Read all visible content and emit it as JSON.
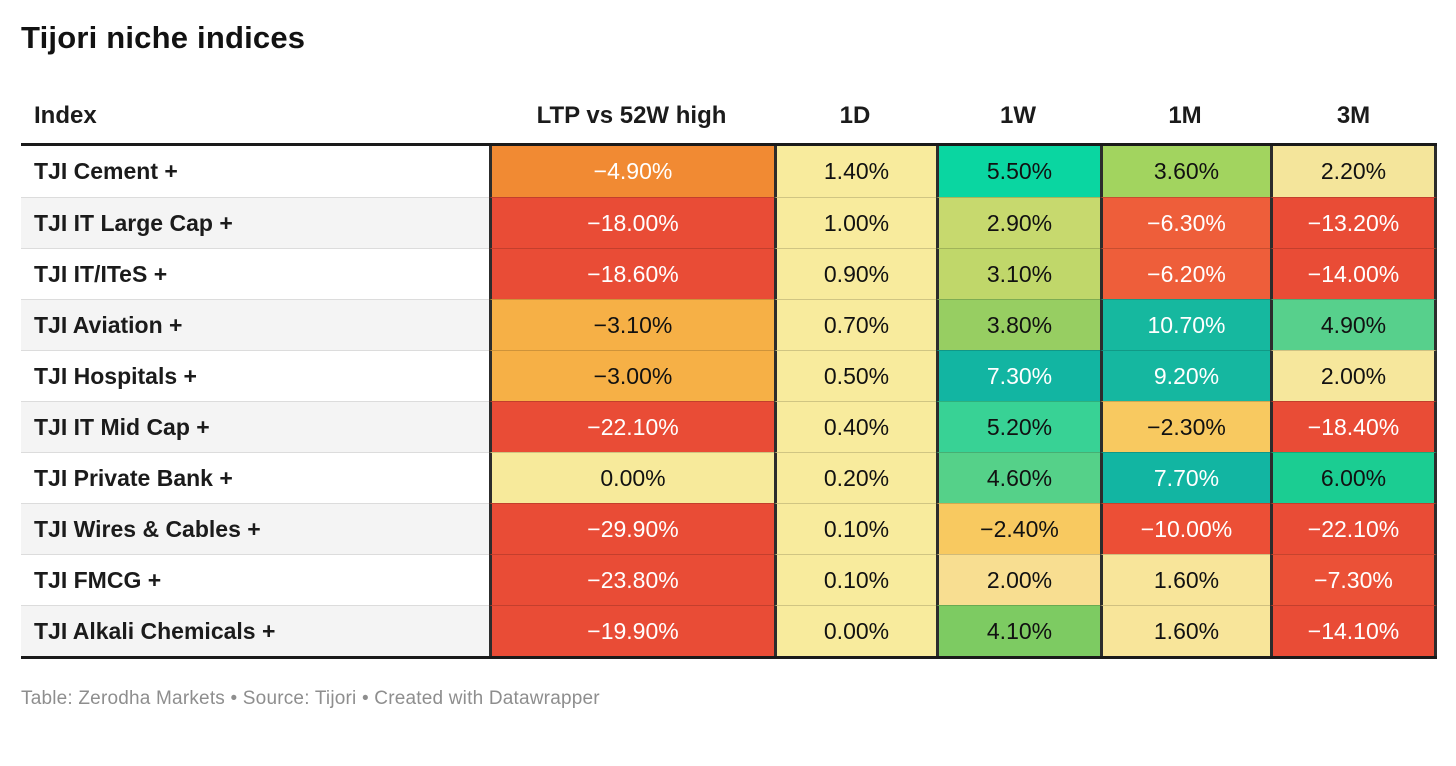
{
  "title": "Tijori niche indices",
  "columns": [
    {
      "key": "index",
      "label": "Index"
    },
    {
      "key": "ltp_vs_52w_high",
      "label": "LTP vs 52W high"
    },
    {
      "key": "1d",
      "label": "1D"
    },
    {
      "key": "1w",
      "label": "1W"
    },
    {
      "key": "1m",
      "label": "1M"
    },
    {
      "key": "3m",
      "label": "3M"
    }
  ],
  "rows": [
    {
      "index": "TJI Cement +",
      "cells": [
        {
          "v": "−4.90%",
          "bg": "#F18A33",
          "fg": "#ffffff"
        },
        {
          "v": "1.40%",
          "bg": "#F8EB9D",
          "fg": "#111111"
        },
        {
          "v": "5.50%",
          "bg": "#0AD6A1",
          "fg": "#111111"
        },
        {
          "v": "3.60%",
          "bg": "#A2D45F",
          "fg": "#111111"
        },
        {
          "v": "2.20%",
          "bg": "#F4E59B",
          "fg": "#111111"
        }
      ]
    },
    {
      "index": "TJI IT Large Cap +",
      "cells": [
        {
          "v": "−18.00%",
          "bg": "#E94C36",
          "fg": "#ffffff"
        },
        {
          "v": "1.00%",
          "bg": "#F8EB9D",
          "fg": "#111111"
        },
        {
          "v": "2.90%",
          "bg": "#C7D96E",
          "fg": "#111111"
        },
        {
          "v": "−6.30%",
          "bg": "#EE5E3A",
          "fg": "#ffffff"
        },
        {
          "v": "−13.20%",
          "bg": "#E94C36",
          "fg": "#ffffff"
        }
      ]
    },
    {
      "index": "TJI IT/ITeS +",
      "cells": [
        {
          "v": "−18.60%",
          "bg": "#E94C36",
          "fg": "#ffffff"
        },
        {
          "v": "0.90%",
          "bg": "#F8EB9D",
          "fg": "#111111"
        },
        {
          "v": "3.10%",
          "bg": "#C0D76A",
          "fg": "#111111"
        },
        {
          "v": "−6.20%",
          "bg": "#EE5E3A",
          "fg": "#ffffff"
        },
        {
          "v": "−14.00%",
          "bg": "#E94C36",
          "fg": "#ffffff"
        }
      ]
    },
    {
      "index": "TJI Aviation +",
      "cells": [
        {
          "v": "−3.10%",
          "bg": "#F6B046",
          "fg": "#111111"
        },
        {
          "v": "0.70%",
          "bg": "#F8EB9D",
          "fg": "#111111"
        },
        {
          "v": "3.80%",
          "bg": "#97CE62",
          "fg": "#111111"
        },
        {
          "v": "10.70%",
          "bg": "#16B89F",
          "fg": "#ffffff"
        },
        {
          "v": "4.90%",
          "bg": "#57D08C",
          "fg": "#111111"
        }
      ]
    },
    {
      "index": "TJI Hospitals +",
      "cells": [
        {
          "v": "−3.00%",
          "bg": "#F6B046",
          "fg": "#111111"
        },
        {
          "v": "0.50%",
          "bg": "#F8EB9D",
          "fg": "#111111"
        },
        {
          "v": "7.30%",
          "bg": "#12B5A2",
          "fg": "#ffffff"
        },
        {
          "v": "9.20%",
          "bg": "#15B7A0",
          "fg": "#ffffff"
        },
        {
          "v": "2.00%",
          "bg": "#F6E79C",
          "fg": "#111111"
        }
      ]
    },
    {
      "index": "TJI IT Mid Cap +",
      "cells": [
        {
          "v": "−22.10%",
          "bg": "#E94C36",
          "fg": "#ffffff"
        },
        {
          "v": "0.40%",
          "bg": "#F8EB9D",
          "fg": "#111111"
        },
        {
          "v": "5.20%",
          "bg": "#38D295",
          "fg": "#111111"
        },
        {
          "v": "−2.30%",
          "bg": "#F8C960",
          "fg": "#111111"
        },
        {
          "v": "−18.40%",
          "bg": "#E94C36",
          "fg": "#ffffff"
        }
      ]
    },
    {
      "index": "TJI Private Bank +",
      "cells": [
        {
          "v": "0.00%",
          "bg": "#F7EA9B",
          "fg": "#111111"
        },
        {
          "v": "0.20%",
          "bg": "#F8EB9D",
          "fg": "#111111"
        },
        {
          "v": "4.60%",
          "bg": "#55D189",
          "fg": "#111111"
        },
        {
          "v": "7.70%",
          "bg": "#12B5A2",
          "fg": "#ffffff"
        },
        {
          "v": "6.00%",
          "bg": "#1BCD92",
          "fg": "#111111"
        }
      ]
    },
    {
      "index": "TJI Wires & Cables +",
      "cells": [
        {
          "v": "−29.90%",
          "bg": "#E94C36",
          "fg": "#ffffff"
        },
        {
          "v": "0.10%",
          "bg": "#F8EB9D",
          "fg": "#111111"
        },
        {
          "v": "−2.40%",
          "bg": "#F8C960",
          "fg": "#111111"
        },
        {
          "v": "−10.00%",
          "bg": "#EC4F36",
          "fg": "#ffffff"
        },
        {
          "v": "−22.10%",
          "bg": "#E94C36",
          "fg": "#ffffff"
        }
      ]
    },
    {
      "index": "TJI FMCG +",
      "cells": [
        {
          "v": "−23.80%",
          "bg": "#E94C36",
          "fg": "#ffffff"
        },
        {
          "v": "0.10%",
          "bg": "#F8EB9D",
          "fg": "#111111"
        },
        {
          "v": "2.00%",
          "bg": "#F8DE91",
          "fg": "#111111"
        },
        {
          "v": "1.60%",
          "bg": "#F8E59A",
          "fg": "#111111"
        },
        {
          "v": "−7.30%",
          "bg": "#EB5137",
          "fg": "#ffffff"
        }
      ]
    },
    {
      "index": "TJI Alkali Chemicals +",
      "cells": [
        {
          "v": "−19.90%",
          "bg": "#E94C36",
          "fg": "#ffffff"
        },
        {
          "v": "0.00%",
          "bg": "#F8EB9D",
          "fg": "#111111"
        },
        {
          "v": "4.10%",
          "bg": "#7DCB62",
          "fg": "#111111"
        },
        {
          "v": "1.60%",
          "bg": "#F8E59A",
          "fg": "#111111"
        },
        {
          "v": "−14.10%",
          "bg": "#E94C36",
          "fg": "#ffffff"
        }
      ]
    }
  ],
  "footer": "Table: Zerodha Markets • Source: Tijori • Created with Datawrapper",
  "palette": {
    "strong_negative": "#E94C36",
    "negative": "#F18A33",
    "neutral": "#F8EB9D",
    "positive": "#7DCB62",
    "strong_positive": "#12B5A2",
    "header_rule": "#1a1a1a",
    "zebra_stripe": "#f4f4f4"
  },
  "chart_data": {
    "type": "table",
    "title": "Tijori niche indices",
    "columns": [
      "Index",
      "LTP vs 52W high",
      "1D",
      "1W",
      "1M",
      "3M"
    ],
    "value_unit": "%",
    "heatmap": true,
    "rows": [
      [
        "TJI Cement +",
        -4.9,
        1.4,
        5.5,
        3.6,
        2.2
      ],
      [
        "TJI IT Large Cap +",
        -18.0,
        1.0,
        2.9,
        -6.3,
        -13.2
      ],
      [
        "TJI IT/ITeS +",
        -18.6,
        0.9,
        3.1,
        -6.2,
        -14.0
      ],
      [
        "TJI Aviation +",
        -3.1,
        0.7,
        3.8,
        10.7,
        4.9
      ],
      [
        "TJI Hospitals +",
        -3.0,
        0.5,
        7.3,
        9.2,
        2.0
      ],
      [
        "TJI IT Mid Cap +",
        -22.1,
        0.4,
        5.2,
        -2.3,
        -18.4
      ],
      [
        "TJI Private Bank +",
        0.0,
        0.2,
        4.6,
        7.7,
        6.0
      ],
      [
        "TJI Wires & Cables +",
        -29.9,
        0.1,
        -2.4,
        -10.0,
        -22.1
      ],
      [
        "TJI FMCG +",
        -23.8,
        0.1,
        2.0,
        1.6,
        -7.3
      ],
      [
        "TJI Alkali Chemicals +",
        -19.9,
        0.0,
        4.1,
        1.6,
        -14.1
      ]
    ]
  }
}
